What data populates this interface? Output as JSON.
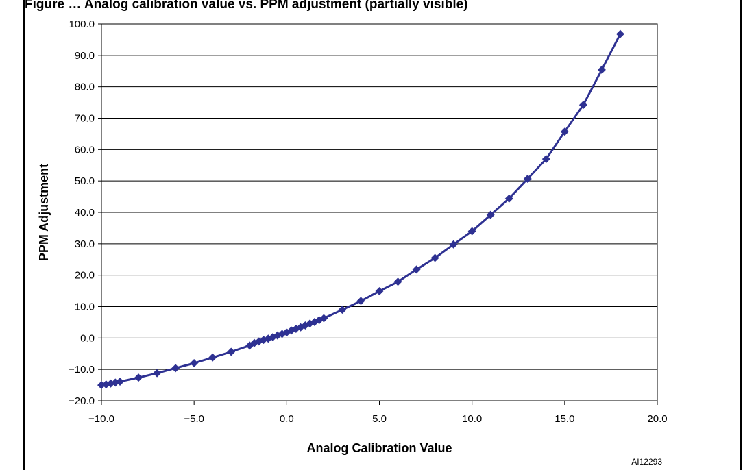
{
  "caption": "Figure … Analog calibration value vs. PPM adjustment (partially visible)",
  "figure_code": "AI12293",
  "chart_data": {
    "type": "line",
    "title": "",
    "xlabel": "Analog Calibration Value",
    "ylabel": "PPM Adjustment",
    "xlim": [
      -10.0,
      20.0
    ],
    "ylim": [
      -20.0,
      100.0
    ],
    "xticks": [
      "−10.0",
      "−5.0",
      "0.0",
      "5.0",
      "10.0",
      "15.0",
      "20.0"
    ],
    "yticks": [
      "−20.0",
      "−10.0",
      "0.0",
      "10.0",
      "20.0",
      "30.0",
      "40.0",
      "50.0",
      "60.0",
      "70.0",
      "80.0",
      "90.0",
      "100.0"
    ],
    "grid": "horizontal",
    "marker": "diamond",
    "color": "#2e3192",
    "series": [
      {
        "name": "",
        "x": [
          -10,
          -9.75,
          -9.5,
          -9.25,
          -9,
          -8,
          -7,
          -6,
          -5,
          -4,
          -3,
          -2,
          -1.75,
          -1.5,
          -1.25,
          -1,
          -0.75,
          -0.5,
          -0.25,
          0,
          0.25,
          0.5,
          0.75,
          1,
          1.25,
          1.5,
          1.75,
          2,
          3,
          4,
          5,
          6,
          7,
          8,
          9,
          10,
          11,
          12,
          13,
          14,
          15,
          16,
          17,
          18
        ],
        "y": [
          -15.0,
          -14.8,
          -14.5,
          -14.2,
          -13.9,
          -12.6,
          -11.2,
          -9.6,
          -8.0,
          -6.2,
          -4.4,
          -2.4,
          -1.6,
          -1.1,
          -0.6,
          -0.2,
          0.3,
          0.8,
          1.3,
          1.8,
          2.4,
          2.9,
          3.4,
          4.0,
          4.6,
          5.1,
          5.7,
          6.3,
          9.0,
          11.8,
          14.9,
          17.9,
          21.8,
          25.5,
          29.8,
          34.0,
          39.2,
          44.4,
          50.7,
          57.0,
          65.7,
          74.2,
          85.4,
          96.8
        ]
      }
    ]
  }
}
